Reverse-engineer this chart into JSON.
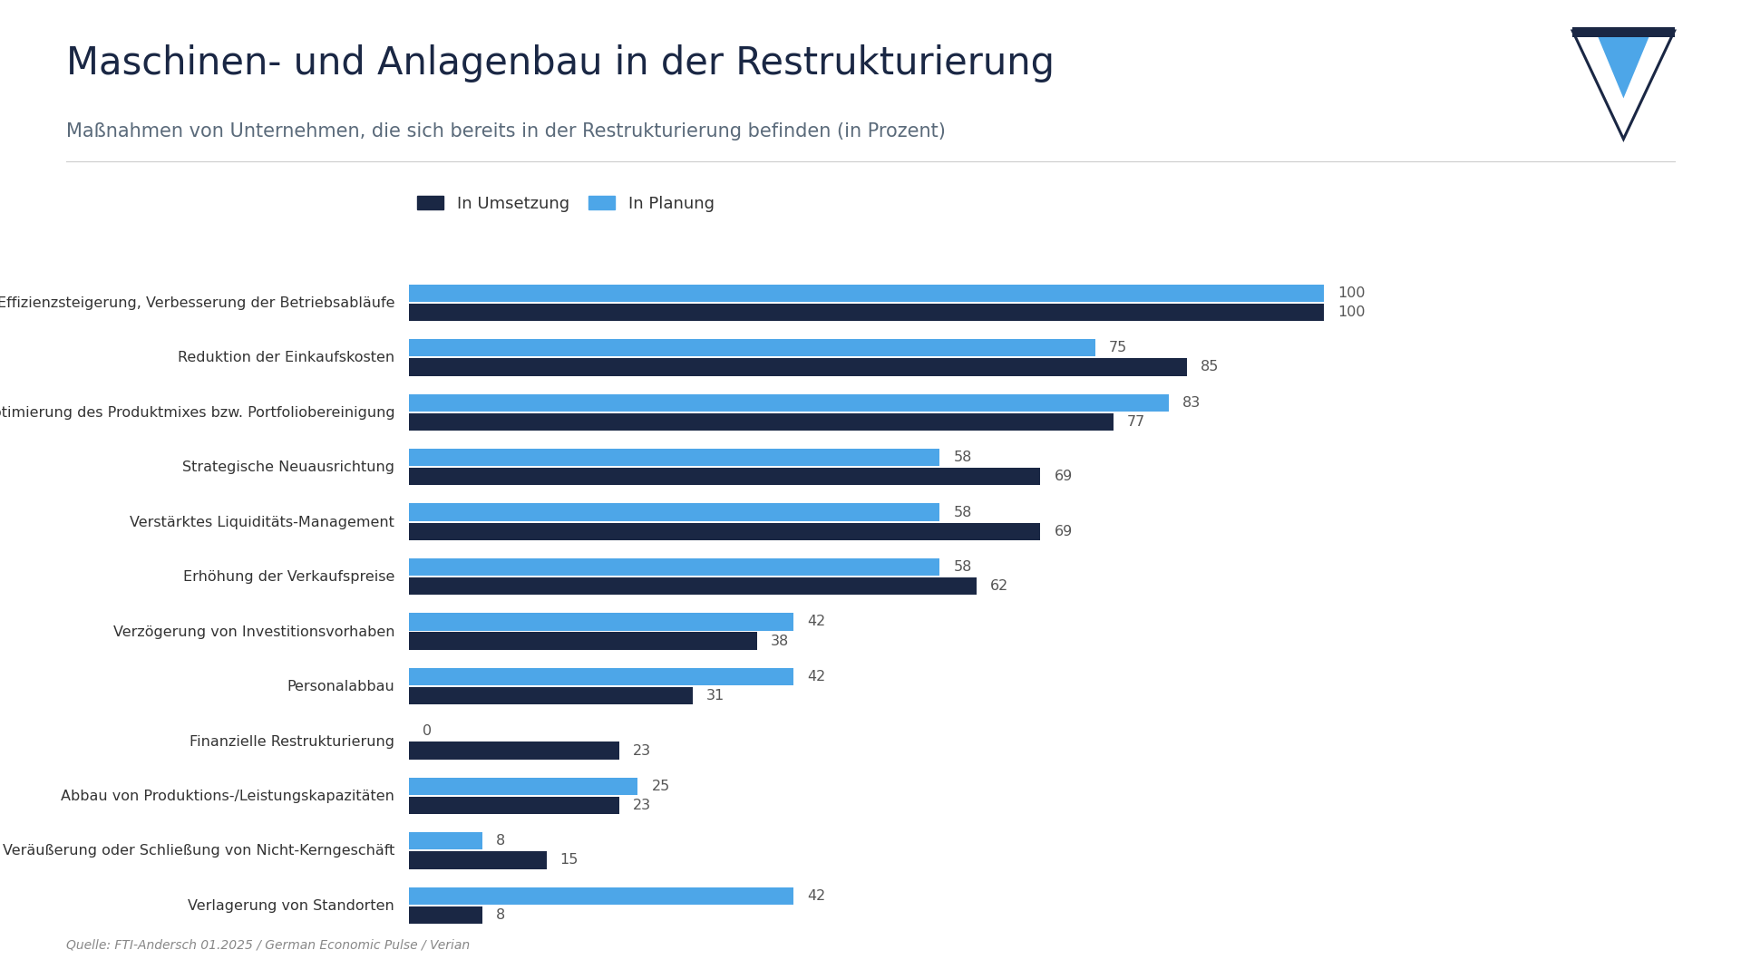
{
  "title": "Maschinen- und Anlagenbau in der Restrukturierung",
  "subtitle": "Maßnahmen von Unternehmen, die sich bereits in der Restrukturierung befinden (in Prozent)",
  "source": "Quelle: FTI-Andersch 01.2025 / German Economic Pulse / Verian",
  "categories": [
    "Effizienzsteigerung, Verbesserung der Betriebsabläufe",
    "Reduktion der Einkaufskosten",
    "Optimierung des Produktmixes bzw. Portfoliobereinigung",
    "Strategische Neuausrichtung",
    "Verstärktes Liquiditäts-Management",
    "Erhöhung der Verkaufspreise",
    "Verzögerung von Investitionsvorhaben",
    "Personalabbau",
    "Finanzielle Restrukturierung",
    "Abbau von Produktions-/Leistungskapazitäten",
    "Veräußerung oder Schließung von Nicht-Kerngeschäft",
    "Verlagerung von Standorten"
  ],
  "in_umsetzung": [
    100,
    85,
    77,
    69,
    69,
    62,
    38,
    31,
    23,
    23,
    15,
    8
  ],
  "in_planung": [
    100,
    75,
    83,
    58,
    58,
    58,
    42,
    42,
    0,
    25,
    8,
    42
  ],
  "color_umsetzung": "#1a2744",
  "color_planung": "#4da6e8",
  "legend_umsetzung": "In Umsetzung",
  "legend_planung": "In Planung",
  "background_color": "#ffffff",
  "title_color": "#1a2744",
  "subtitle_color": "#5a6a7a",
  "source_color": "#888888",
  "bar_height": 0.32,
  "bar_gap": 0.03,
  "xlim": [
    0,
    118
  ]
}
